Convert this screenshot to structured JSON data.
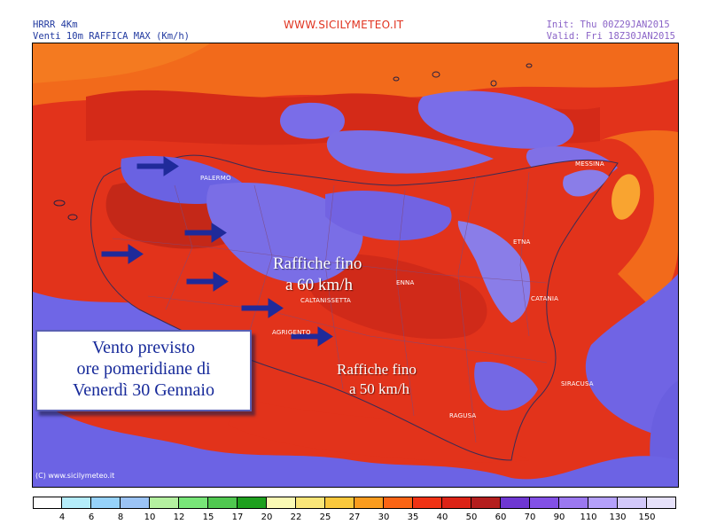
{
  "header": {
    "model": "HRRR 4Km",
    "field": "Venti 10m RAFFICA MAX (Km/h)",
    "site": "WWW.SICILYMETEO.IT",
    "init": "Init: Thu 00Z29JAN2015",
    "valid": "Valid: Fri  18Z30JAN2015"
  },
  "map_labels": {
    "palermo": "PALERMO",
    "messina": "MESSINA",
    "etna": "ETNA",
    "catania": "CATANIA",
    "enna": "ENNA",
    "caltanissetta": "CALTANISSETTA",
    "agrigento": "AGRIGENTO",
    "siracusa": "SIRACUSA",
    "ragusa": "RAGUSA"
  },
  "annotations": {
    "gusts_north_line1": "Raffiche fino",
    "gusts_north_line2": "a 60 km/h",
    "gusts_south_line1": "Raffiche fino",
    "gusts_south_line2": "a 50 km/h",
    "box_line1": "Vento previsto",
    "box_line2": "ore pomeridiane di",
    "box_line3": "Venerdì 30 Gennaio"
  },
  "copyright": "(C) www.sicilymeteo.it",
  "legend": {
    "ticks": [
      "4",
      "6",
      "8",
      "10",
      "12",
      "15",
      "17",
      "20",
      "22",
      "25",
      "27",
      "30",
      "35",
      "40",
      "50",
      "60",
      "70",
      "90",
      "110",
      "130",
      "150"
    ],
    "colors": [
      "#ffffff",
      "#b4ecfa",
      "#96d2fa",
      "#9bc3f5",
      "#b4f0a0",
      "#78e678",
      "#50c850",
      "#1ea01e",
      "#fafab4",
      "#fae678",
      "#fac83c",
      "#fa9c1e",
      "#fa6414",
      "#f03214",
      "#dc2316",
      "#b41e1e",
      "#6e37d2",
      "#8250e6",
      "#9b78f0",
      "#b4a0fa",
      "#d2c8fa",
      "#e6e1fa"
    ]
  },
  "colors": {
    "red": "#e2331b",
    "dark_red": "#c82a1a",
    "orange": "#f26a1b",
    "blue_purple": "#6e69e6",
    "light_purple": "#9b8cf0",
    "arrow_blue": "#1f2a9a"
  }
}
